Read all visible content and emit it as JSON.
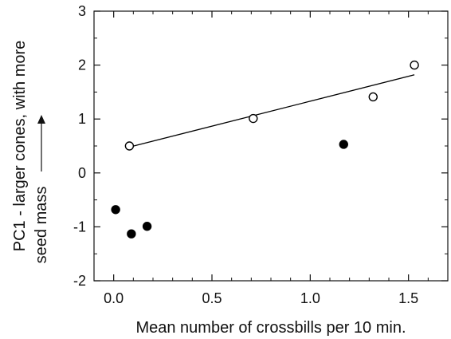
{
  "chart_data": {
    "type": "scatter",
    "title": "",
    "xlabel": "Mean number of crossbills per 10 min.",
    "ylabel_line1": "PC1 - larger cones, with more",
    "ylabel_line2": "seed mass",
    "xlim": [
      -0.1,
      1.7
    ],
    "ylim": [
      -2,
      3
    ],
    "xticks": [
      0.0,
      0.5,
      1.0,
      1.5
    ],
    "xtick_labels": [
      "0.0",
      "0.5",
      "1.0",
      "1.5"
    ],
    "yticks": [
      -2,
      -1,
      0,
      1,
      2,
      3
    ],
    "ytick_labels": [
      "-2",
      "-1",
      "0",
      "1",
      "2",
      "3"
    ],
    "grid": false,
    "series": [
      {
        "marker": "open-circle",
        "points": [
          {
            "x": 0.08,
            "y": 0.5
          },
          {
            "x": 0.71,
            "y": 1.01
          },
          {
            "x": 1.32,
            "y": 1.41
          },
          {
            "x": 1.53,
            "y": 2.0
          }
        ]
      },
      {
        "marker": "filled-circle",
        "points": [
          {
            "x": 0.01,
            "y": -0.68
          },
          {
            "x": 0.09,
            "y": -1.13
          },
          {
            "x": 0.17,
            "y": -0.99
          },
          {
            "x": 1.17,
            "y": 0.53
          }
        ]
      }
    ],
    "fit_line": {
      "x": [
        0.08,
        1.53
      ],
      "y": [
        0.48,
        1.82
      ]
    },
    "colors": {
      "axis": "#111111",
      "marker": "#000000",
      "background": "#ffffff"
    }
  }
}
